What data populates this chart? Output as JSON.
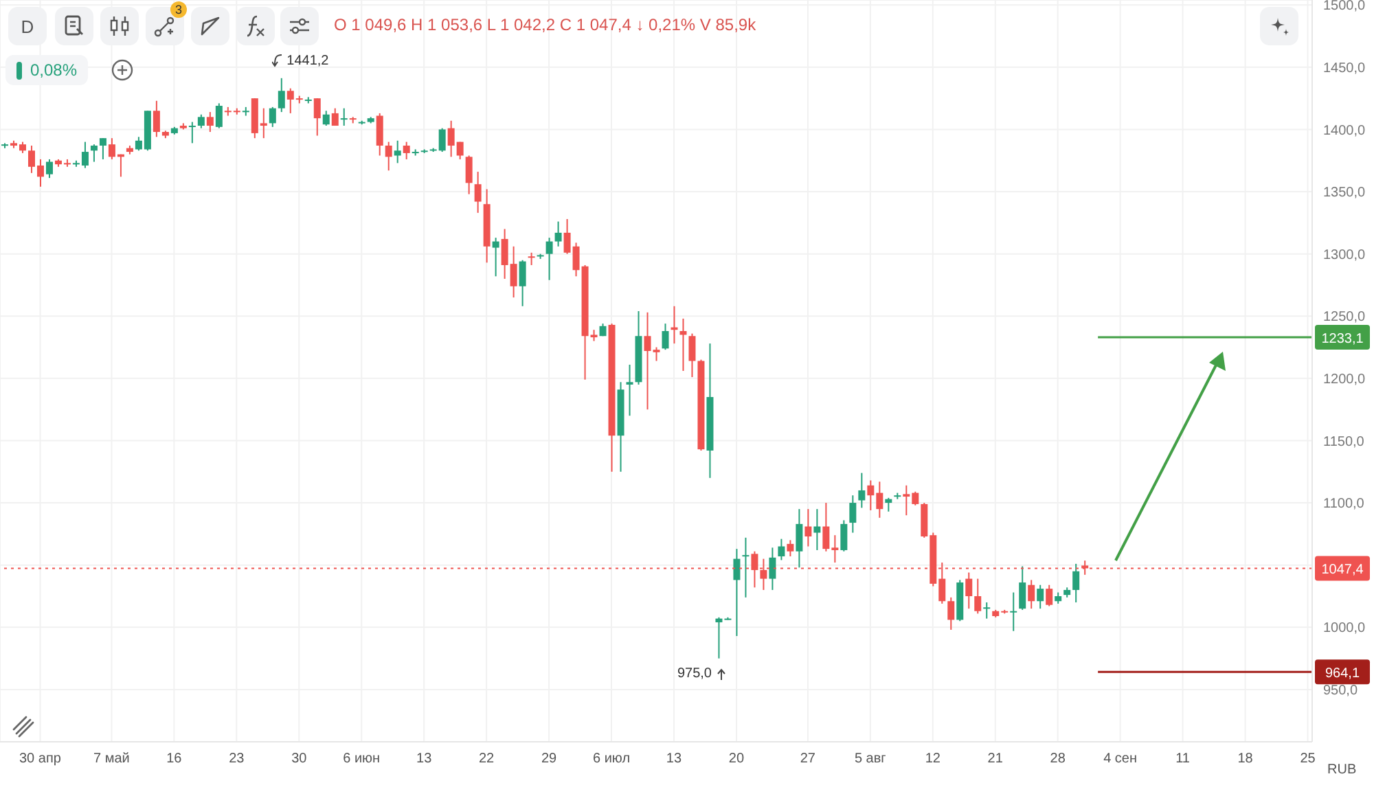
{
  "chart_data": {
    "type": "candlestick",
    "categories": [
      null,
      null,
      null,
      null,
      "30 апр",
      null,
      null,
      null,
      null,
      null,
      null,
      null,
      "7 май",
      null,
      null,
      null,
      null,
      null,
      null,
      "16",
      null,
      null,
      null,
      null,
      null,
      null,
      "23",
      null,
      null,
      null,
      null,
      null,
      null,
      "30",
      null,
      null,
      null,
      null,
      null,
      null,
      "6 июн",
      null,
      null,
      null,
      null,
      null,
      null,
      "13",
      null,
      null,
      null,
      null,
      null,
      null,
      "22",
      null,
      null,
      null,
      null,
      null,
      null,
      "29",
      null,
      null,
      null,
      null,
      null,
      null,
      "6 июл",
      null,
      null,
      null,
      null,
      null,
      null,
      "13",
      null,
      null,
      null,
      null,
      null,
      null,
      "20",
      null,
      null,
      null,
      null,
      null,
      null,
      null,
      "27",
      null,
      null,
      null,
      null,
      null,
      null,
      "5 авг",
      null,
      null,
      null,
      null,
      null,
      null,
      "12",
      null,
      null,
      null,
      null,
      null,
      null,
      "21",
      null,
      null,
      null,
      null,
      null,
      null,
      "28",
      null,
      null,
      null,
      null,
      null,
      null,
      "4 сен",
      null,
      null,
      null,
      null,
      null,
      null,
      "11",
      null,
      null,
      null,
      null,
      null,
      null,
      "18",
      null,
      null,
      null,
      null,
      null,
      null,
      "25"
    ],
    "ohlc": [
      [
        1387,
        1389,
        1385,
        1388
      ],
      [
        1389,
        1391,
        1385,
        1387
      ],
      [
        1388,
        1390,
        1381,
        1383
      ],
      [
        1383,
        1387,
        1365,
        1370
      ],
      [
        1371,
        1376,
        1354,
        1362
      ],
      [
        1364,
        1376,
        1361,
        1374
      ],
      [
        1375,
        1376,
        1370,
        1372
      ],
      [
        1373,
        1376,
        1370,
        1372
      ],
      [
        1372,
        1375,
        1370,
        1373
      ],
      [
        1371,
        1390,
        1369,
        1382
      ],
      [
        1383,
        1388,
        1374,
        1387
      ],
      [
        1387,
        1393,
        1376,
        1393
      ],
      [
        1388,
        1393,
        1376,
        1378
      ],
      [
        1380,
        1380,
        1362,
        1378
      ],
      [
        1385,
        1387,
        1380,
        1382
      ],
      [
        1384,
        1394,
        1383,
        1391
      ],
      [
        1384,
        1415,
        1383,
        1415
      ],
      [
        1415,
        1423,
        1394,
        1398
      ],
      [
        1398,
        1399,
        1393,
        1395
      ],
      [
        1397,
        1402,
        1396,
        1401
      ],
      [
        1403,
        1405,
        1400,
        1401
      ],
      [
        1402,
        1406,
        1389,
        1403
      ],
      [
        1403,
        1412,
        1401,
        1410
      ],
      [
        1410,
        1414,
        1398,
        1403
      ],
      [
        1402,
        1421,
        1401,
        1419
      ],
      [
        1415,
        1418,
        1411,
        1414
      ],
      [
        1415,
        1417,
        1412,
        1414
      ],
      [
        1414,
        1418,
        1411,
        1415
      ],
      [
        1425,
        1425,
        1393,
        1397
      ],
      [
        1405,
        1417,
        1393,
        1403
      ],
      [
        1405,
        1418,
        1402,
        1417
      ],
      [
        1417,
        1441.2,
        1414,
        1431
      ],
      [
        1431,
        1433,
        1413,
        1424
      ],
      [
        1425,
        1427,
        1421,
        1424
      ],
      [
        1423,
        1426,
        1421,
        1424
      ],
      [
        1425,
        1425,
        1395,
        1409
      ],
      [
        1404,
        1415,
        1403,
        1412
      ],
      [
        1413,
        1417,
        1403,
        1403
      ],
      [
        1408,
        1417,
        1403,
        1409
      ],
      [
        1409,
        1410,
        1405,
        1408
      ],
      [
        1405,
        1407,
        1404,
        1406
      ],
      [
        1406,
        1410,
        1405,
        1409
      ],
      [
        1411,
        1413,
        1379,
        1387
      ],
      [
        1387,
        1390,
        1367,
        1378
      ],
      [
        1379,
        1391,
        1373,
        1383
      ],
      [
        1387,
        1390,
        1376,
        1381
      ],
      [
        1381,
        1384,
        1379,
        1382
      ],
      [
        1382,
        1384,
        1381,
        1383
      ],
      [
        1383,
        1385,
        1382,
        1384
      ],
      [
        1383,
        1401,
        1382,
        1400
      ],
      [
        1401,
        1407,
        1378,
        1387
      ],
      [
        1390,
        1390,
        1376,
        1379
      ],
      [
        1378,
        1379,
        1348,
        1357
      ],
      [
        1356,
        1366,
        1333,
        1342
      ],
      [
        1340,
        1352,
        1293,
        1306
      ],
      [
        1305,
        1313,
        1282,
        1310
      ],
      [
        1312,
        1320,
        1280,
        1291
      ],
      [
        1292,
        1306,
        1265,
        1274
      ],
      [
        1274,
        1295,
        1258,
        1294
      ],
      [
        1298,
        1301,
        1291,
        1297
      ],
      [
        1298,
        1300,
        1296,
        1299
      ],
      [
        1300,
        1313,
        1279,
        1310
      ],
      [
        1310,
        1326,
        1306,
        1317
      ],
      [
        1317,
        1328,
        1300,
        1301
      ],
      [
        1306,
        1309,
        1282,
        1287
      ],
      [
        1290,
        1291,
        1199,
        1234
      ],
      [
        1235,
        1239,
        1230,
        1233
      ],
      [
        1234,
        1244,
        1234,
        1242
      ],
      [
        1243,
        1244,
        1125,
        1154
      ],
      [
        1154,
        1197,
        1125,
        1191
      ],
      [
        1195,
        1211,
        1170,
        1197
      ],
      [
        1197,
        1254,
        1195,
        1234
      ],
      [
        1234,
        1253,
        1175,
        1222
      ],
      [
        1223,
        1225,
        1214,
        1221
      ],
      [
        1224,
        1244,
        1223,
        1238
      ],
      [
        1241,
        1258,
        1228,
        1239
      ],
      [
        1238,
        1248,
        1206,
        1235
      ],
      [
        1234,
        1236,
        1201,
        1214
      ],
      [
        1214,
        1215,
        1142,
        1143
      ],
      [
        1142,
        1228,
        1120,
        1185
      ],
      [
        1004,
        1008,
        975.0,
        1007
      ],
      [
        1007,
        1008,
        1006,
        1007
      ],
      [
        1038,
        1063,
        993,
        1055
      ],
      [
        1057,
        1072,
        1024,
        1058
      ],
      [
        1059,
        1061,
        1032,
        1046
      ],
      [
        1046,
        1055,
        1030,
        1039
      ],
      [
        1039,
        1064,
        1030,
        1056
      ],
      [
        1057,
        1071,
        1054,
        1065
      ],
      [
        1067,
        1070,
        1057,
        1061
      ],
      [
        1061,
        1095,
        1048,
        1083
      ],
      [
        1081,
        1095,
        1065,
        1073
      ],
      [
        1076,
        1095,
        1062,
        1081
      ],
      [
        1081,
        1100,
        1061,
        1063
      ],
      [
        1064,
        1074,
        1052,
        1062
      ],
      [
        1062,
        1086,
        1061,
        1083
      ],
      [
        1084,
        1106,
        1076,
        1100
      ],
      [
        1102,
        1124,
        1096,
        1110
      ],
      [
        1114,
        1118,
        1094,
        1106
      ],
      [
        1108,
        1117,
        1088,
        1095
      ],
      [
        1100,
        1104,
        1093,
        1103
      ],
      [
        1105,
        1108,
        1103,
        1106
      ],
      [
        1107,
        1114,
        1090,
        1105
      ],
      [
        1108,
        1109,
        1098,
        1099
      ],
      [
        1099,
        1100,
        1072,
        1073
      ],
      [
        1074,
        1076,
        1033,
        1035
      ],
      [
        1039,
        1052,
        1019,
        1021
      ],
      [
        1021,
        1024,
        998,
        1006
      ],
      [
        1006,
        1038,
        1005,
        1036
      ],
      [
        1039,
        1044,
        1015,
        1025
      ],
      [
        1025,
        1039,
        1011,
        1013
      ],
      [
        1015,
        1020,
        1007,
        1016
      ],
      [
        1013,
        1014,
        1008,
        1009
      ],
      [
        1013,
        1014,
        1011,
        1012
      ],
      [
        1012,
        1028,
        997,
        1013
      ],
      [
        1015,
        1049,
        1014,
        1036
      ],
      [
        1034,
        1038,
        1015,
        1021
      ],
      [
        1021,
        1034,
        1015,
        1031
      ],
      [
        1031,
        1034,
        1017,
        1018
      ],
      [
        1021,
        1028,
        1019,
        1025
      ],
      [
        1026,
        1032,
        1024,
        1030
      ],
      [
        1030,
        1051,
        1020,
        1045
      ],
      [
        1049.6,
        1053.6,
        1042.2,
        1047.4
      ],
      null,
      null,
      null,
      null,
      null,
      null,
      null,
      null,
      null,
      null,
      null,
      null,
      null,
      null,
      null,
      null,
      null,
      null,
      null,
      null,
      null,
      null,
      null,
      null,
      null
    ],
    "ylim": [
      908,
      1504
    ],
    "yticks": [
      {
        "value": 950,
        "label": "950,0"
      },
      {
        "value": 1000,
        "label": "1000,0"
      },
      {
        "value": 1050,
        "label": null
      },
      {
        "value": 1100,
        "label": "1100,0"
      },
      {
        "value": 1150,
        "label": "1150,0"
      },
      {
        "value": 1200,
        "label": "1200,0"
      },
      {
        "value": 1250,
        "label": "1250,0"
      },
      {
        "value": 1300,
        "label": "1300,0"
      },
      {
        "value": 1350,
        "label": "1350,0"
      },
      {
        "value": 1400,
        "label": "1400,0"
      },
      {
        "value": 1450,
        "label": "1450,0"
      },
      {
        "value": 1500,
        "label": "1500,0"
      }
    ],
    "grid": true,
    "ref_lines": [
      {
        "axis": "y",
        "value": 1047.4,
        "label": "1047,4",
        "color": "#ef5350",
        "line_style": "dotted"
      },
      {
        "axis": "y",
        "value": 1233.1,
        "label": "1233,1",
        "color": "#43a047",
        "line_style": "solid"
      },
      {
        "axis": "y",
        "value": 964.1,
        "label": "964,1",
        "color": "#a31f1a",
        "line_style": "solid"
      }
    ],
    "annotations": [
      "O 1 049,6 H 1 053,6 L 1 042,2 C 1 047,4 ↓ 0,21% V 85,9k",
      "0,08%",
      "D",
      "3",
      "RUB",
      "1441,2",
      "975,0"
    ]
  }
}
